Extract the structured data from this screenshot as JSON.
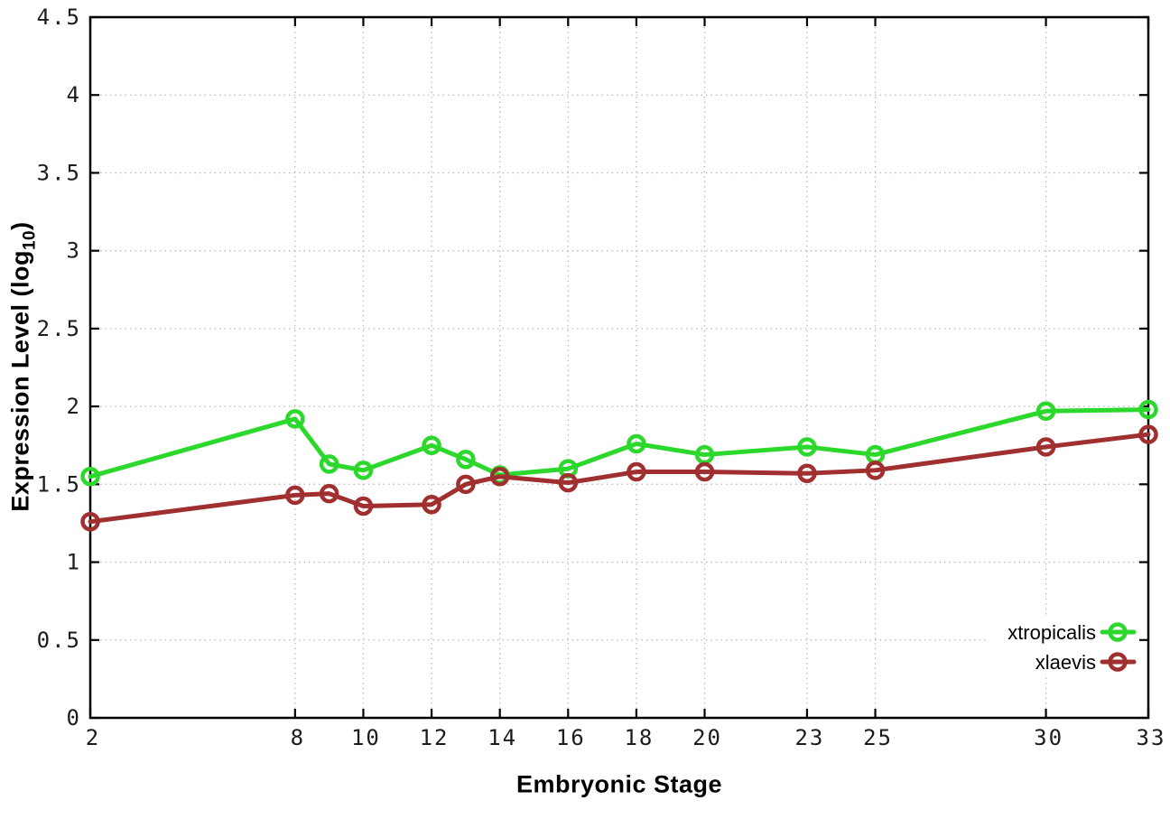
{
  "figure": {
    "xlabel": "Embryonic Stage",
    "ylabel_pre": "Expression Level (log",
    "ylabel_sub": "10",
    "ylabel_post": ")"
  },
  "chart_data": {
    "type": "line",
    "title": "",
    "xlabel": "Embryonic Stage",
    "ylabel": "Expression Level (log10)",
    "x": [
      2,
      8,
      9,
      10,
      12,
      13,
      14,
      16,
      18,
      20,
      23,
      25,
      30,
      33
    ],
    "x_ticks": [
      2,
      8,
      10,
      12,
      14,
      16,
      18,
      20,
      23,
      25,
      30,
      33
    ],
    "x_tick_labels": [
      "2",
      "8",
      "10",
      "12",
      "14",
      "16",
      "18",
      "20",
      "23",
      "25",
      "30",
      "33"
    ],
    "y_ticks": [
      0,
      0.5,
      1,
      1.5,
      2,
      2.5,
      3,
      3.5,
      4,
      4.5
    ],
    "y_tick_labels": [
      "0",
      "0.5",
      "1",
      "1.5",
      "2",
      "2.5",
      "3",
      "3.5",
      "4",
      "4.5"
    ],
    "xlim": [
      2,
      33
    ],
    "ylim": [
      0,
      4.5
    ],
    "grid": true,
    "legend_position": "bottom-right-inside",
    "colors": {
      "xtropicalis": "#2cd82c",
      "xlaevis": "#a02f2f",
      "grid": "#bbbbbb",
      "axis": "#000000"
    },
    "series": [
      {
        "name": "xtropicalis",
        "color": "#2cd82c",
        "values": [
          1.55,
          1.92,
          1.63,
          1.59,
          1.75,
          1.66,
          1.56,
          1.6,
          1.76,
          1.69,
          1.74,
          1.69,
          1.97,
          1.98
        ]
      },
      {
        "name": "xlaevis",
        "color": "#a02f2f",
        "values": [
          1.26,
          1.43,
          1.44,
          1.36,
          1.37,
          1.5,
          1.55,
          1.51,
          1.58,
          1.58,
          1.57,
          1.59,
          1.74,
          1.82
        ]
      }
    ]
  }
}
